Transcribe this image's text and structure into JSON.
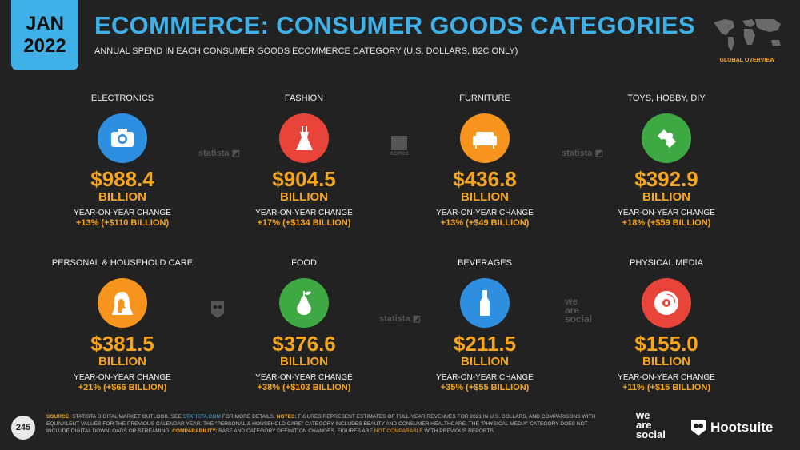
{
  "header": {
    "month": "JAN",
    "year": "2022",
    "title": "ECOMMERCE: CONSUMER GOODS CATEGORIES",
    "subtitle": "ANNUAL SPEND IN EACH CONSUMER GOODS ECOMMERCE CATEGORY (U.S. DOLLARS, B2C ONLY)",
    "region_label": "GLOBAL OVERVIEW"
  },
  "categories": [
    {
      "name": "ELECTRONICS",
      "value": "$988.4",
      "unit": "BILLION",
      "yoy_label": "YEAR-ON-YEAR CHANGE",
      "yoy": "+13% (+$110 BILLION)",
      "icon": "camera-icon",
      "color": "#2e8fe0"
    },
    {
      "name": "FASHION",
      "value": "$904.5",
      "unit": "BILLION",
      "yoy_label": "YEAR-ON-YEAR CHANGE",
      "yoy": "+17% (+$134 BILLION)",
      "icon": "dress-icon",
      "color": "#e8443a"
    },
    {
      "name": "FURNITURE",
      "value": "$436.8",
      "unit": "BILLION",
      "yoy_label": "YEAR-ON-YEAR CHANGE",
      "yoy": "+13% (+$49 BILLION)",
      "icon": "sofa-icon",
      "color": "#f7941d"
    },
    {
      "name": "TOYS, HOBBY, DIY",
      "value": "$392.9",
      "unit": "BILLION",
      "yoy_label": "YEAR-ON-YEAR CHANGE",
      "yoy": "+18% (+$59 BILLION)",
      "icon": "puzzle-icon",
      "color": "#3ea843"
    },
    {
      "name": "PERSONAL & HOUSEHOLD CARE",
      "value": "$381.5",
      "unit": "BILLION",
      "yoy_label": "YEAR-ON-YEAR CHANGE",
      "yoy": "+21% (+$66 BILLION)",
      "icon": "woman-profile-icon",
      "color": "#f7941d"
    },
    {
      "name": "FOOD",
      "value": "$376.6",
      "unit": "BILLION",
      "yoy_label": "YEAR-ON-YEAR CHANGE",
      "yoy": "+38% (+$103 BILLION)",
      "icon": "pear-icon",
      "color": "#3ea843"
    },
    {
      "name": "BEVERAGES",
      "value": "$211.5",
      "unit": "BILLION",
      "yoy_label": "YEAR-ON-YEAR CHANGE",
      "yoy": "+35% (+$55 BILLION)",
      "icon": "bottle-icon",
      "color": "#2e8fe0"
    },
    {
      "name": "PHYSICAL MEDIA",
      "value": "$155.0",
      "unit": "BILLION",
      "yoy_label": "YEAR-ON-YEAR CHANGE",
      "yoy": "+11% (+$15 BILLION)",
      "icon": "disc-icon",
      "color": "#e8443a"
    }
  ],
  "watermarks": {
    "statista": "statista",
    "kepios": "KEPIOS",
    "we": "we",
    "are": "are",
    "social": "social"
  },
  "footer": {
    "page_number": "245",
    "source_label": "SOURCE:",
    "source_text": " STATISTA DIGITAL MARKET OUTLOOK. SEE ",
    "source_link": "STATISTA.COM",
    "source_text_2": " FOR MORE DETAILS. ",
    "notes_label": "NOTES:",
    "notes_text": " FIGURES REPRESENT ESTIMATES OF FULL-YEAR REVENUES FOR 2021 IN U.S. DOLLARS, AND COMPARISONS WITH EQUIVALENT VALUES FOR THE PREVIOUS CALENDAR YEAR. THE \"PERSONAL & HOUSEHOLD CARE\" CATEGORY INCLUDES BEAUTY AND CONSUMER HEALTHCARE. THE \"PHYSICAL MEDIA\" CATEGORY DOES NOT INCLUDE DIGITAL DOWNLOADS OR STREAMING. ",
    "comparability_label": "COMPARABILITY:",
    "comparability_text": " BASE AND CATEGORY DEFINITION CHANGES. FIGURES ARE ",
    "comparability_highlight": "NOT COMPARABLE",
    "comparability_text_2": " WITH PREVIOUS REPORTS.",
    "we_are_social": [
      "we",
      "are",
      "social"
    ],
    "hootsuite": "Hootsuite"
  },
  "colors": {
    "accent_blue": "#3fb1e8",
    "accent_orange": "#f7a51c",
    "background": "#222222"
  }
}
